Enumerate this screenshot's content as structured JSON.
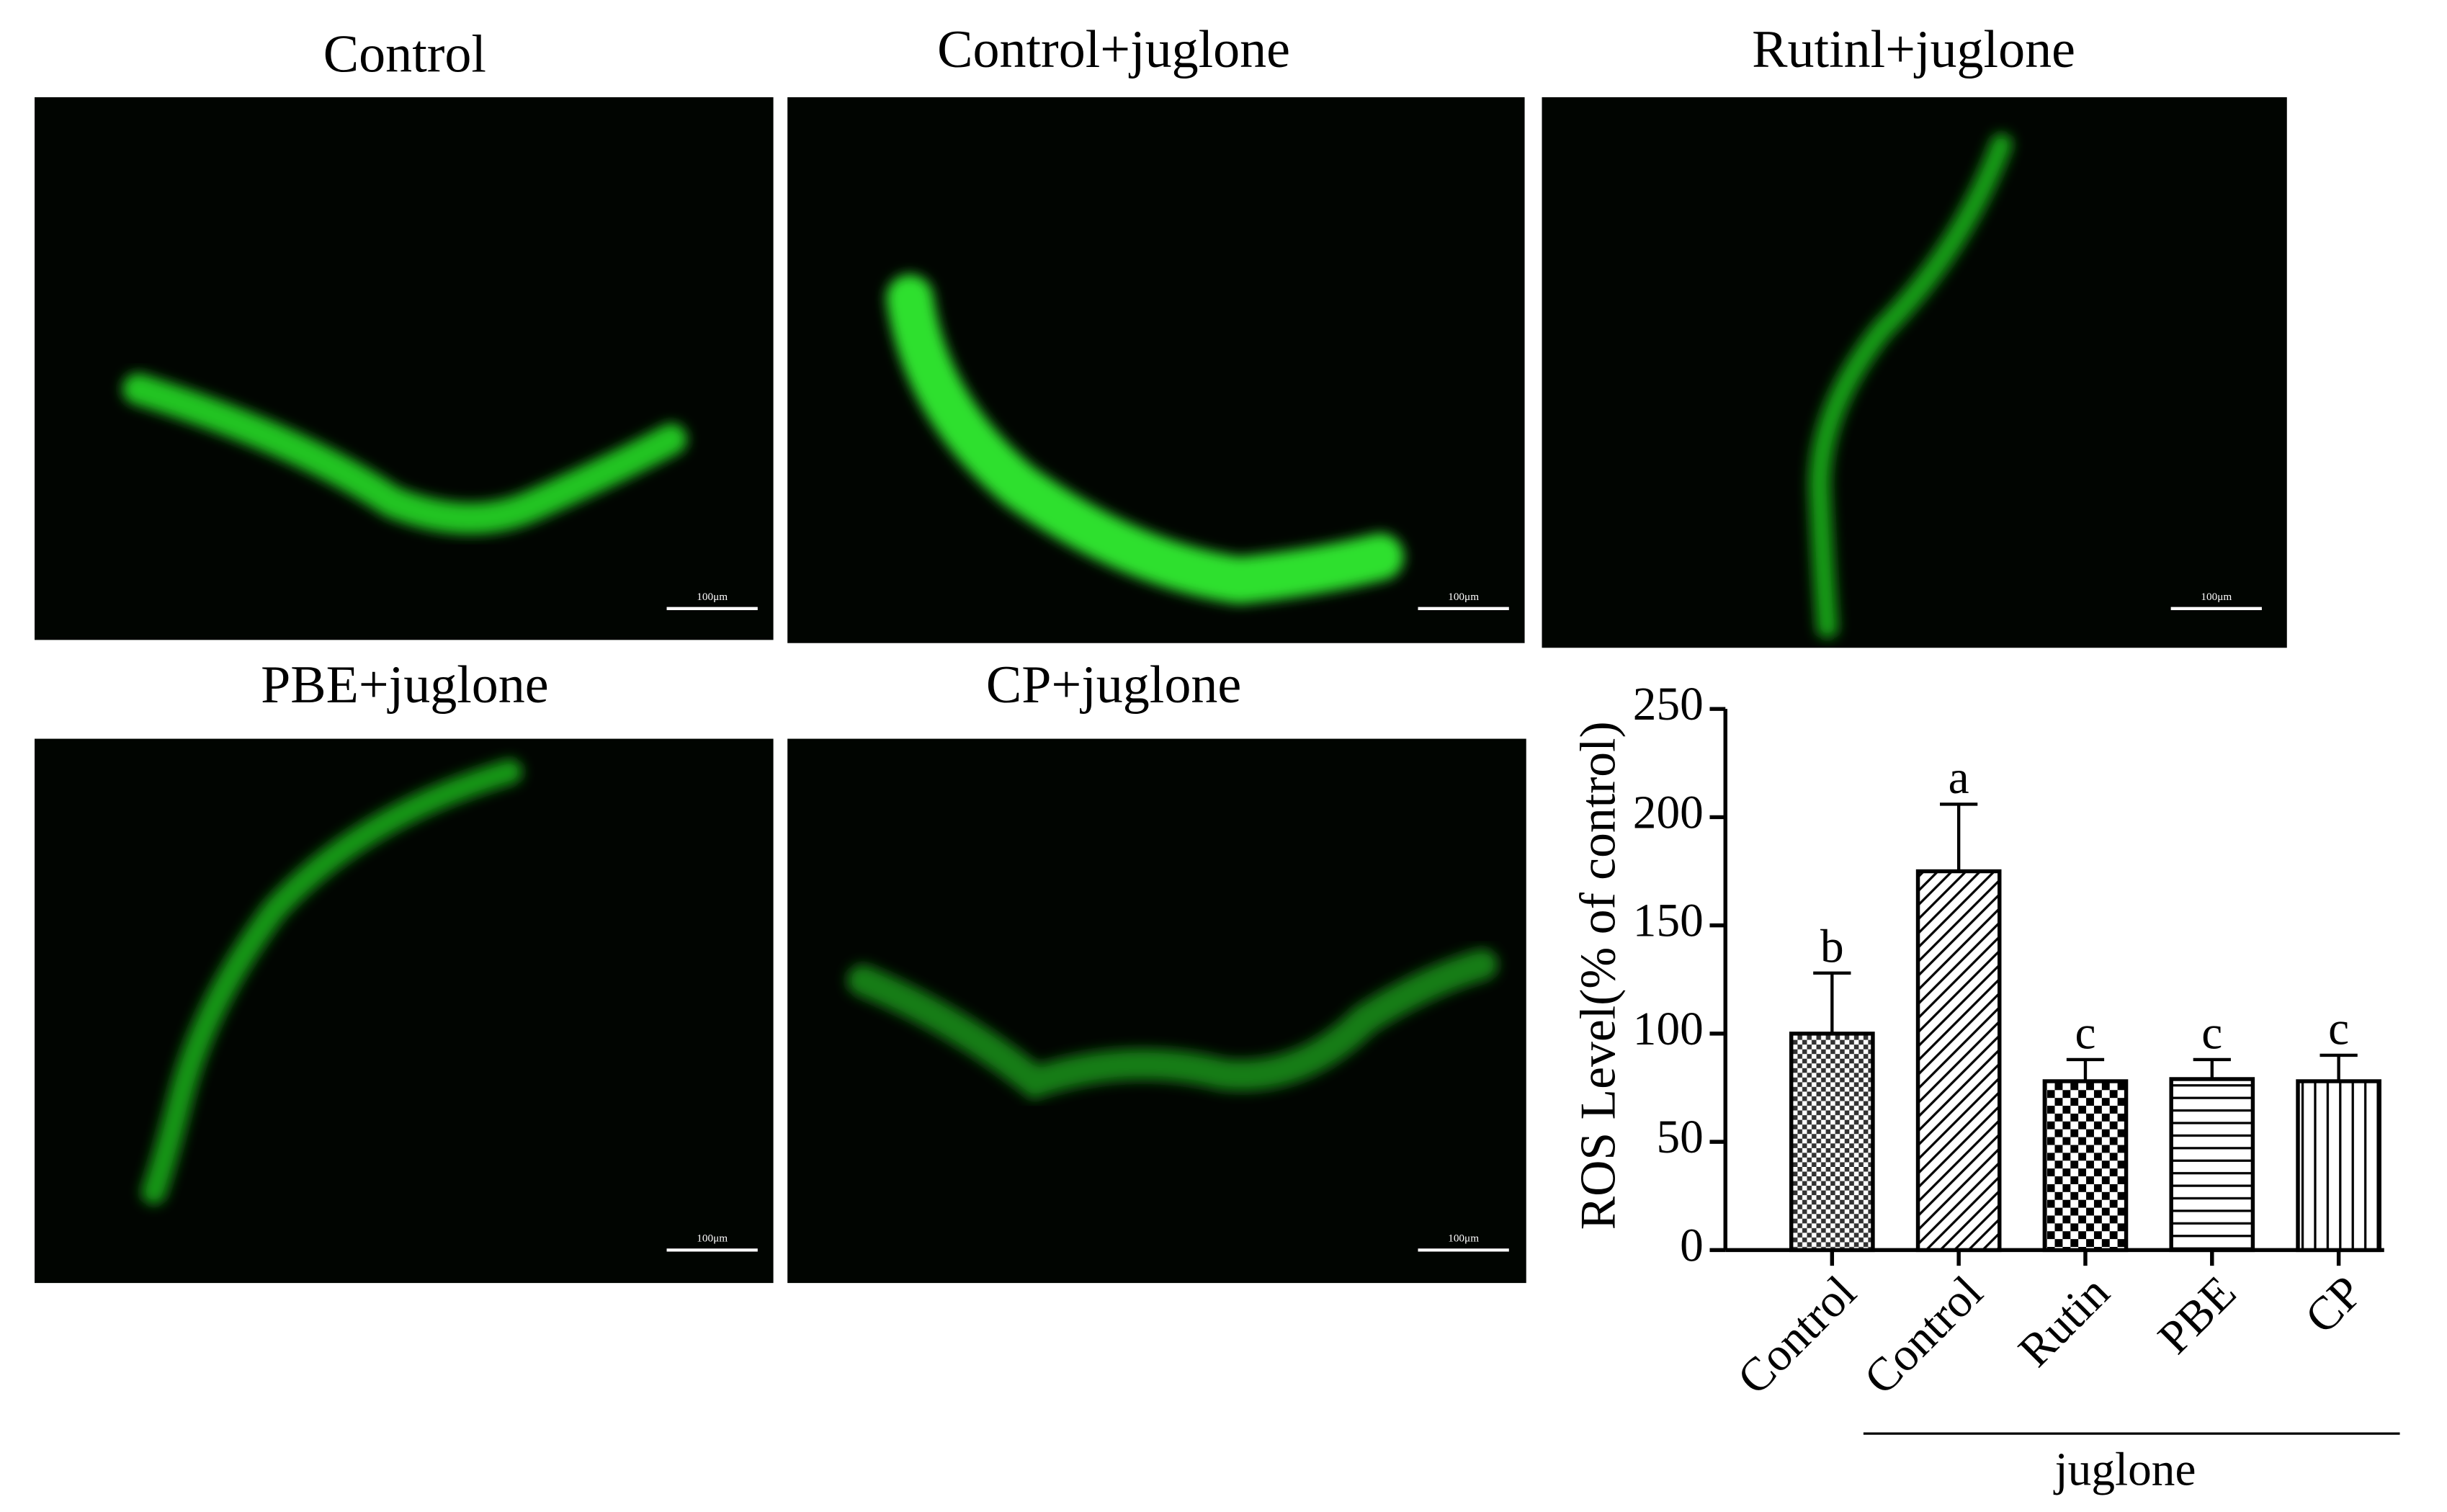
{
  "panels": [
    {
      "title": "Control",
      "scale_bar": "100μm"
    },
    {
      "title": "Control+juglone",
      "scale_bar": "100μm"
    },
    {
      "title": "Rutinl+juglone",
      "scale_bar": "100μm"
    },
    {
      "title": "PBE+juglone",
      "scale_bar": "100μm"
    },
    {
      "title": "CP+juglone",
      "scale_bar": "100μm"
    }
  ],
  "chart_data": {
    "type": "bar",
    "y_label": "ROS Level(% of control)",
    "categories": [
      "Control",
      "Control",
      "Rutin",
      "PBE",
      "CP"
    ],
    "group_label": "juglone",
    "values": [
      100,
      175,
      78,
      79,
      78
    ],
    "errors": [
      28,
      31,
      10,
      9,
      12
    ],
    "annotations": [
      "b",
      "a",
      "c",
      "c",
      "c"
    ],
    "patterns": [
      "grid",
      "diagonal",
      "checker",
      "horizontal",
      "vertical"
    ],
    "ylim": [
      0,
      250
    ],
    "yticks": [
      0,
      50,
      100,
      150,
      200,
      250
    ]
  }
}
